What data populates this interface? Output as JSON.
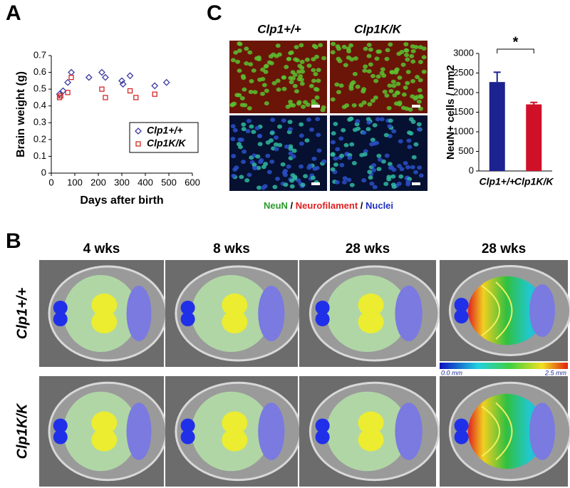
{
  "panel_labels": [
    "A",
    "B",
    "C"
  ],
  "chart_data": [
    {
      "type": "scatter",
      "xlabel": "Days after birth",
      "ylabel": "Brain weight (g)",
      "xlim": [
        0,
        600
      ],
      "xticks": [
        0,
        100,
        200,
        300,
        400,
        500,
        600
      ],
      "ylim": [
        0,
        0.7
      ],
      "yticks": [
        0,
        0.1,
        0.2,
        0.3,
        0.4,
        0.5,
        0.6,
        0.7
      ],
      "legend": "lower right",
      "series": [
        {
          "name": "Clp1+/+",
          "color": "#3a3aa0",
          "marker": "diamond",
          "x": [
            35,
            50,
            70,
            85,
            160,
            215,
            230,
            300,
            305,
            335,
            440,
            490
          ],
          "values": [
            0.47,
            0.49,
            0.54,
            0.6,
            0.57,
            0.6,
            0.57,
            0.55,
            0.53,
            0.58,
            0.52,
            0.54
          ]
        },
        {
          "name": "Clp1K/K",
          "color": "#d42828",
          "marker": "square",
          "x": [
            35,
            40,
            70,
            85,
            215,
            230,
            335,
            360,
            440
          ],
          "values": [
            0.45,
            0.46,
            0.48,
            0.57,
            0.5,
            0.45,
            0.49,
            0.45,
            0.47
          ]
        }
      ]
    },
    {
      "type": "bar",
      "ylabel": "NeuN+ cells / mm2",
      "categories": [
        "Clp1+/+",
        "Clp1K/K"
      ],
      "values": [
        2270,
        1700
      ],
      "errors": [
        250,
        50
      ],
      "colors": [
        "#1c2290",
        "#d01028"
      ],
      "ylim": [
        0,
        3000
      ],
      "yticks": [
        0,
        500,
        1000,
        1500,
        2000,
        2500,
        3000
      ],
      "annotation": "*"
    }
  ],
  "microscopy": {
    "columns": [
      "Clp1+/+",
      "Clp1K/K"
    ],
    "stains": [
      {
        "text": "NeuN",
        "color": "#2a9a2a"
      },
      {
        "text": "Neurofilament",
        "color": "#e02020"
      },
      {
        "text": "Nuclei",
        "color": "#2030c0"
      }
    ],
    "separator": "/"
  },
  "mri": {
    "columns": [
      "4 wks",
      "8 wks",
      "28 wks",
      "28 wks"
    ],
    "rows": [
      "Clp1+/+",
      "Clp1K/K"
    ],
    "colorbar": {
      "min_label": "0.0 mm",
      "max_label": "2.5 mm"
    }
  }
}
